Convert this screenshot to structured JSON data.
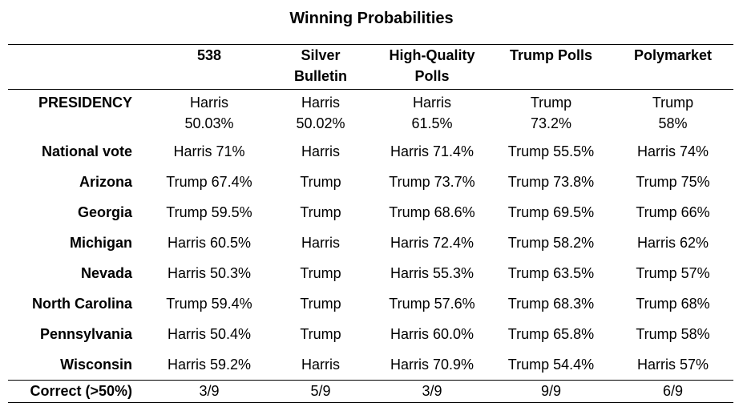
{
  "title": "Winning Probabilities",
  "columns": [
    "538",
    "Silver Bulletin",
    "High-Quality Polls",
    "Trump Polls",
    "Polymarket"
  ],
  "presidency": {
    "label": "PRESIDENCY",
    "cells": [
      {
        "winner": "Harris",
        "pct": "50.03%"
      },
      {
        "winner": "Harris",
        "pct": "50.02%"
      },
      {
        "winner": "Harris",
        "pct": "61.5%"
      },
      {
        "winner": "Trump",
        "pct": "73.2%"
      },
      {
        "winner": "Trump",
        "pct": "58%"
      }
    ]
  },
  "rows": [
    {
      "label": "National vote",
      "cells": [
        "Harris 71%",
        "Harris",
        "Harris 71.4%",
        "Trump 55.5%",
        "Harris 74%"
      ]
    },
    {
      "label": "Arizona",
      "cells": [
        "Trump 67.4%",
        "Trump",
        "Trump 73.7%",
        "Trump 73.8%",
        "Trump 75%"
      ]
    },
    {
      "label": "Georgia",
      "cells": [
        "Trump 59.5%",
        "Trump",
        "Trump 68.6%",
        "Trump 69.5%",
        "Trump 66%"
      ]
    },
    {
      "label": "Michigan",
      "cells": [
        "Harris 60.5%",
        "Harris",
        "Harris 72.4%",
        "Trump 58.2%",
        "Harris 62%"
      ]
    },
    {
      "label": "Nevada",
      "cells": [
        "Harris 50.3%",
        "Trump",
        "Harris 55.3%",
        "Trump 63.5%",
        "Trump 57%"
      ]
    },
    {
      "label": "North Carolina",
      "cells": [
        "Trump 59.4%",
        "Trump",
        "Trump 57.6%",
        "Trump 68.3%",
        "Trump 68%"
      ]
    },
    {
      "label": "Pennsylvania",
      "cells": [
        "Harris 50.4%",
        "Trump",
        "Harris 60.0%",
        "Trump 65.8%",
        "Trump 58%"
      ]
    },
    {
      "label": "Wisconsin",
      "cells": [
        "Harris 59.2%",
        "Harris",
        "Harris 70.9%",
        "Trump 54.4%",
        "Harris 57%"
      ]
    }
  ],
  "footer": {
    "label": "Correct (>50%)",
    "cells": [
      "3/9",
      "5/9",
      "3/9",
      "9/9",
      "6/9"
    ]
  }
}
